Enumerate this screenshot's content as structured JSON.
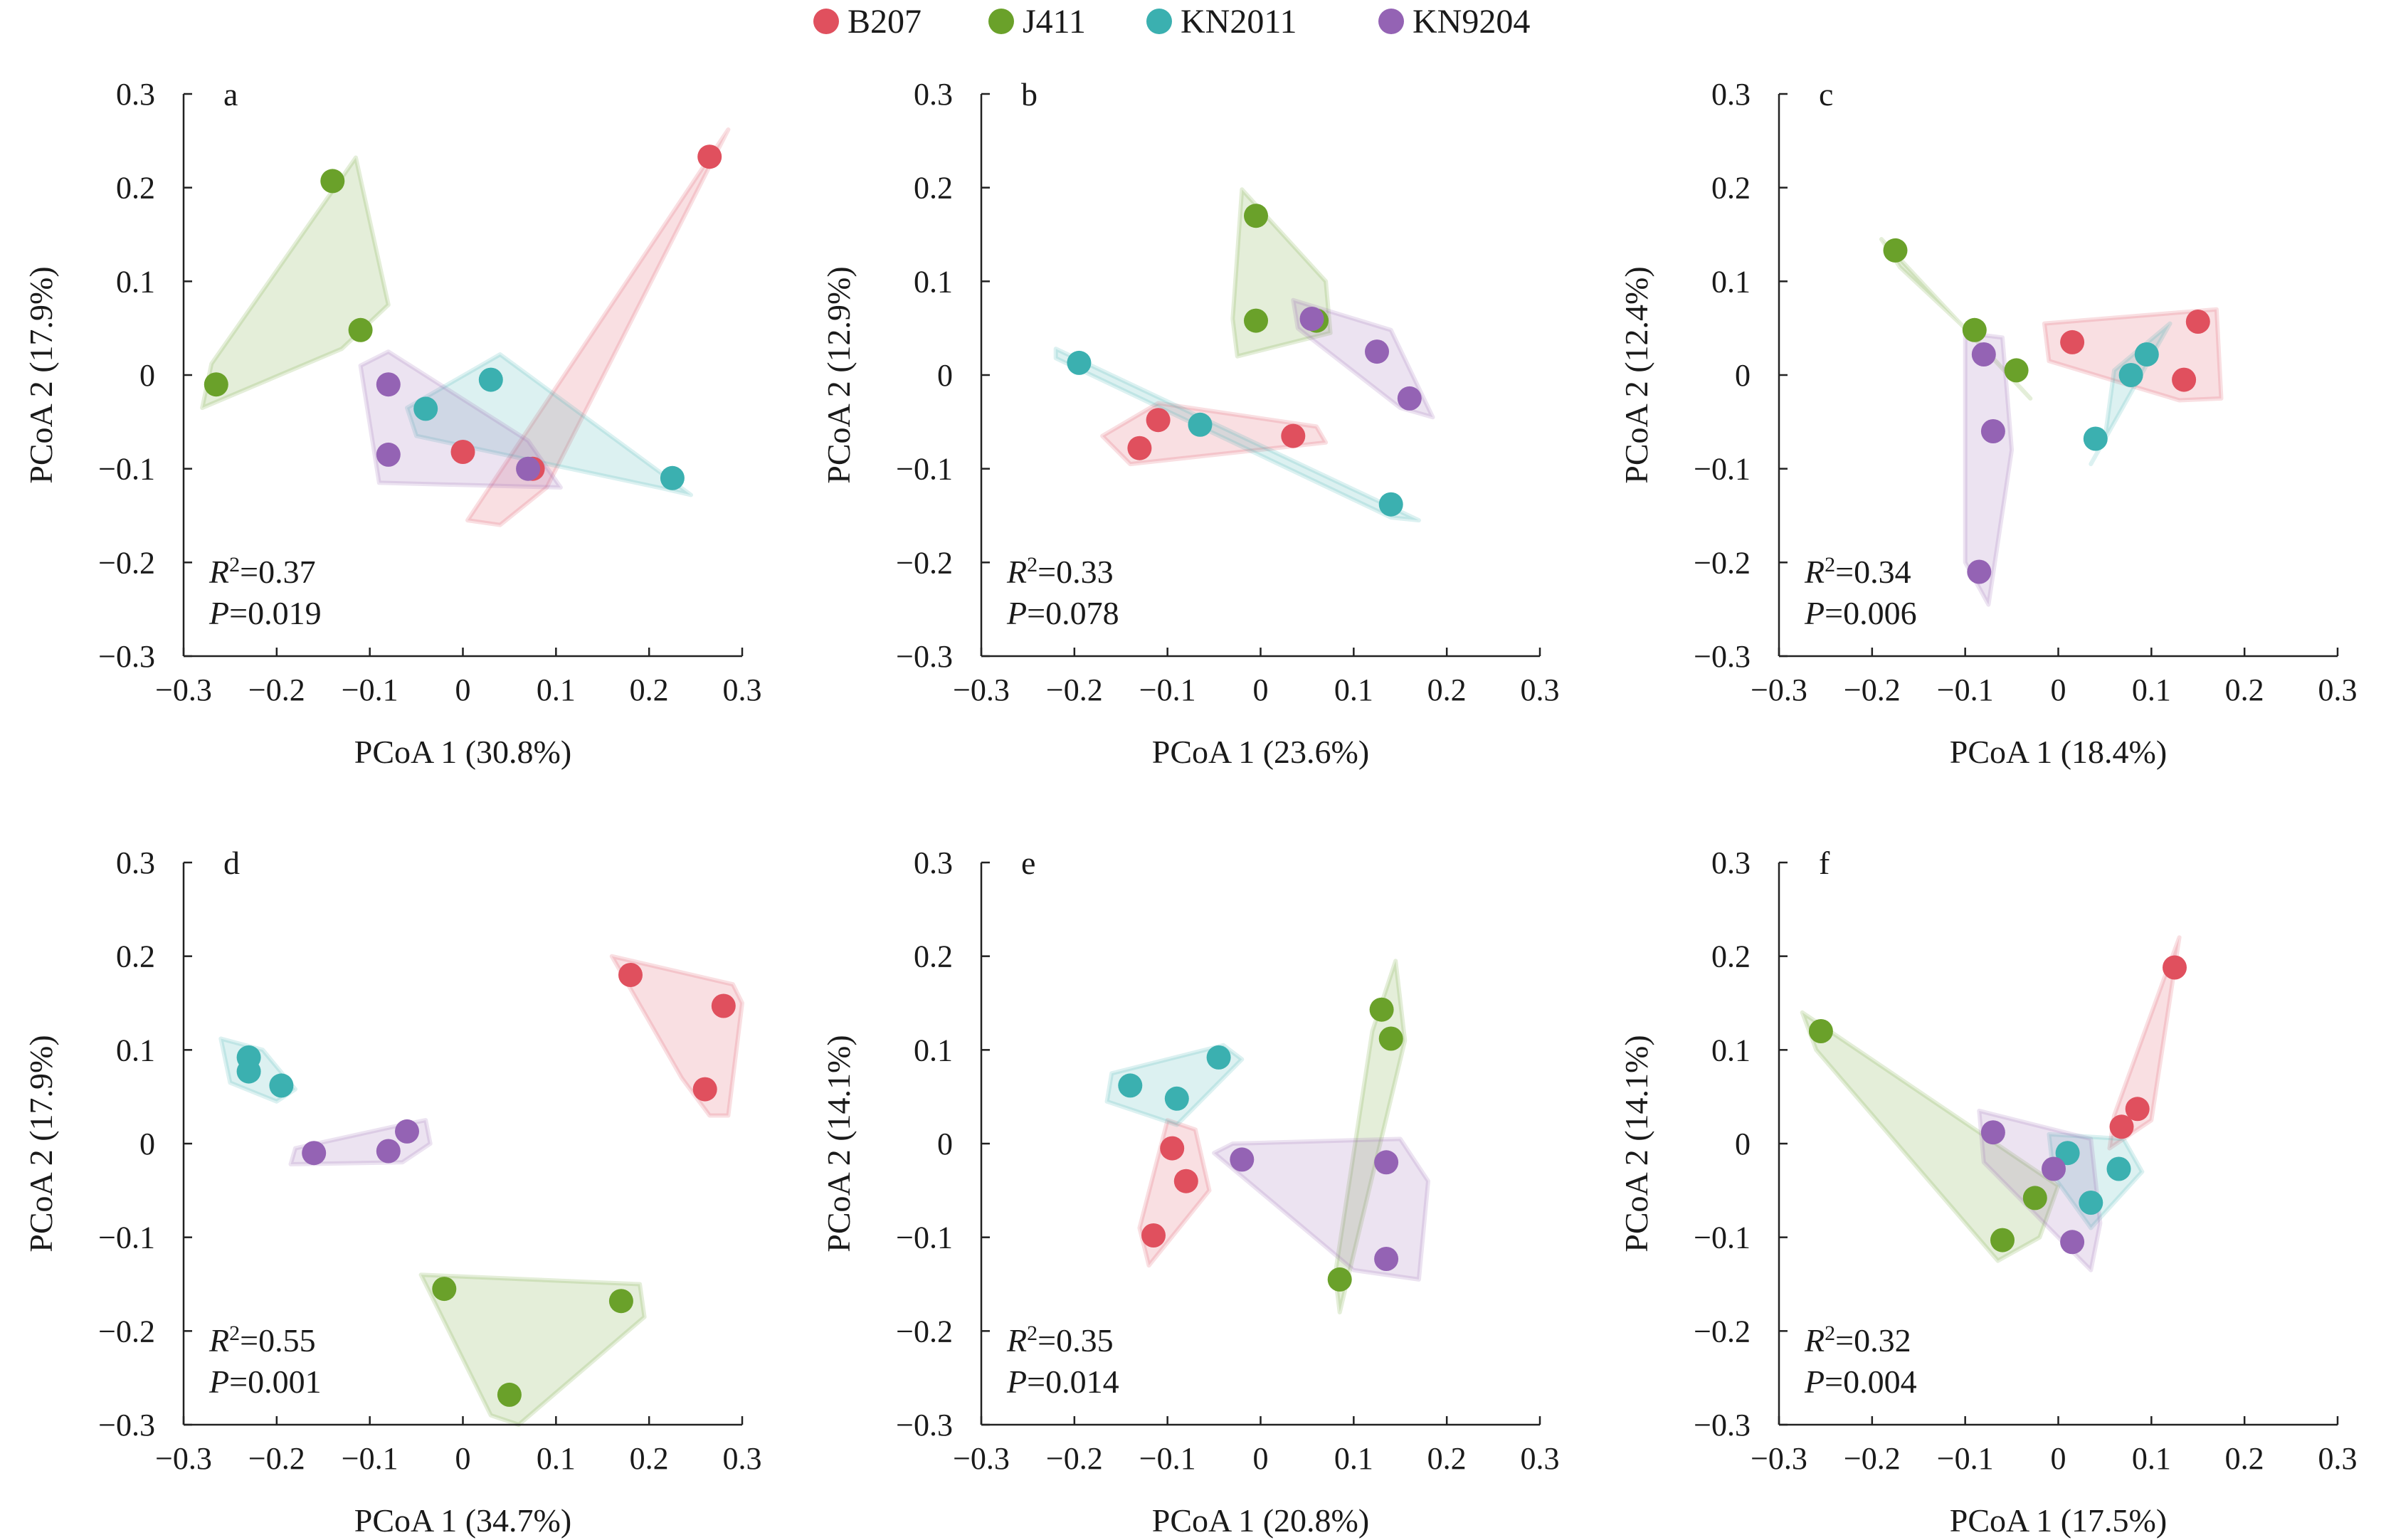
{
  "legend": {
    "items": [
      {
        "name": "B207",
        "color": "#e0505e"
      },
      {
        "name": "J411",
        "color": "#6aa12a"
      },
      {
        "name": "KN2011",
        "color": "#3bb0b0"
      },
      {
        "name": "KN9204",
        "color": "#9463b4"
      }
    ]
  },
  "chart_data": [
    {
      "type": "scatter",
      "panel": "a",
      "xlabel": "PCoA 1 (30.8%)",
      "ylabel": "PCoA 2 (17.9%)",
      "xlim": [
        -0.3,
        0.3
      ],
      "ylim": [
        -0.3,
        0.3
      ],
      "xticks": [
        "−0.3",
        "−0.2",
        "−0.1",
        "0",
        "0.1",
        "0.2",
        "0.3"
      ],
      "yticks": [
        "0.3",
        "0.2",
        "0.1",
        "0",
        "−0.1",
        "−0.2",
        "−0.3"
      ],
      "r2": "0.37",
      "p": "0.019",
      "series": [
        {
          "name": "B207",
          "points": [
            [
              0.265,
              0.233
            ],
            [
              0.0,
              -0.082
            ],
            [
              0.075,
              -0.1
            ]
          ]
        },
        {
          "name": "J411",
          "points": [
            [
              -0.14,
              0.207
            ],
            [
              -0.11,
              0.048
            ],
            [
              -0.265,
              -0.01
            ]
          ]
        },
        {
          "name": "KN2011",
          "points": [
            [
              0.03,
              -0.005
            ],
            [
              -0.04,
              -0.036
            ],
            [
              0.225,
              -0.11
            ]
          ]
        },
        {
          "name": "KN9204",
          "points": [
            [
              -0.08,
              -0.01
            ],
            [
              -0.08,
              -0.085
            ],
            [
              0.07,
              -0.1
            ]
          ]
        }
      ],
      "hulls": {
        "B207": [
          [
            0.285,
            0.262
          ],
          [
            0.005,
            -0.155
          ],
          [
            0.04,
            -0.16
          ],
          [
            0.09,
            -0.12
          ]
        ],
        "J411": [
          [
            -0.115,
            0.232
          ],
          [
            -0.08,
            0.075
          ],
          [
            -0.13,
            0.028
          ],
          [
            -0.28,
            -0.035
          ],
          [
            -0.27,
            0.012
          ]
        ],
        "KN2011": [
          [
            0.04,
            0.022
          ],
          [
            0.245,
            -0.128
          ],
          [
            0.21,
            -0.12
          ],
          [
            -0.05,
            -0.065
          ],
          [
            -0.06,
            -0.035
          ]
        ],
        "KN9204": [
          [
            -0.11,
            0.01
          ],
          [
            -0.08,
            0.025
          ],
          [
            0.07,
            -0.07
          ],
          [
            0.105,
            -0.12
          ],
          [
            -0.09,
            -0.115
          ]
        ]
      }
    },
    {
      "type": "scatter",
      "panel": "b",
      "xlabel": "PCoA 1 (23.6%)",
      "ylabel": "PCoA 2 (12.9%)",
      "xlim": [
        -0.3,
        0.3
      ],
      "ylim": [
        -0.3,
        0.3
      ],
      "xticks": [
        "−0.3",
        "−0.2",
        "−0.1",
        "0",
        "0.1",
        "0.2",
        "0.3"
      ],
      "yticks": [
        "0.3",
        "0.2",
        "0.1",
        "0",
        "−0.1",
        "−0.2",
        "−0.3"
      ],
      "r2": "0.33",
      "p": "0.078",
      "series": [
        {
          "name": "B207",
          "points": [
            [
              -0.11,
              -0.048
            ],
            [
              -0.13,
              -0.078
            ],
            [
              0.035,
              -0.065
            ]
          ]
        },
        {
          "name": "J411",
          "points": [
            [
              -0.005,
              0.17
            ],
            [
              -0.005,
              0.058
            ],
            [
              0.06,
              0.058
            ]
          ]
        },
        {
          "name": "KN2011",
          "points": [
            [
              -0.195,
              0.013
            ],
            [
              -0.065,
              -0.053
            ],
            [
              0.14,
              -0.138
            ]
          ]
        },
        {
          "name": "KN9204",
          "points": [
            [
              0.055,
              0.06
            ],
            [
              0.125,
              0.025
            ],
            [
              0.16,
              -0.025
            ]
          ]
        }
      ],
      "hulls": {
        "B207": [
          [
            -0.11,
            -0.03
          ],
          [
            0.06,
            -0.055
          ],
          [
            0.07,
            -0.072
          ],
          [
            -0.14,
            -0.095
          ],
          [
            -0.17,
            -0.065
          ]
        ],
        "J411": [
          [
            -0.02,
            0.198
          ],
          [
            0.07,
            0.1
          ],
          [
            0.075,
            0.045
          ],
          [
            -0.025,
            0.02
          ],
          [
            -0.03,
            0.06
          ]
        ],
        "KN2011": [
          [
            -0.22,
            0.028
          ],
          [
            0.17,
            -0.155
          ],
          [
            0.14,
            -0.152
          ],
          [
            -0.22,
            0.018
          ]
        ],
        "KN9204": [
          [
            0.035,
            0.08
          ],
          [
            0.14,
            0.048
          ],
          [
            0.185,
            -0.045
          ],
          [
            0.15,
            -0.035
          ],
          [
            0.04,
            0.05
          ]
        ]
      }
    },
    {
      "type": "scatter",
      "panel": "c",
      "xlabel": "PCoA 1 (18.4%)",
      "ylabel": "PCoA 2 (12.4%)",
      "xlim": [
        -0.3,
        0.3
      ],
      "ylim": [
        -0.3,
        0.3
      ],
      "xticks": [
        "−0.3",
        "−0.2",
        "−0.1",
        "0",
        "0.1",
        "0.2",
        "0.3"
      ],
      "yticks": [
        "0.3",
        "0.2",
        "0.1",
        "0",
        "−0.1",
        "−0.2",
        "−0.3"
      ],
      "r2": "0.34",
      "p": "0.006",
      "series": [
        {
          "name": "B207",
          "points": [
            [
              0.15,
              0.057
            ],
            [
              0.015,
              0.035
            ],
            [
              0.135,
              -0.005
            ]
          ]
        },
        {
          "name": "J411",
          "points": [
            [
              -0.175,
              0.133
            ],
            [
              -0.09,
              0.048
            ],
            [
              -0.045,
              0.005
            ]
          ]
        },
        {
          "name": "KN2011",
          "points": [
            [
              0.095,
              0.022
            ],
            [
              0.078,
              0.0
            ],
            [
              0.04,
              -0.068
            ]
          ]
        },
        {
          "name": "KN9204",
          "points": [
            [
              -0.08,
              0.022
            ],
            [
              -0.07,
              -0.06
            ],
            [
              -0.085,
              -0.21
            ]
          ]
        }
      ],
      "hulls": {
        "B207": [
          [
            -0.015,
            0.055
          ],
          [
            0.17,
            0.07
          ],
          [
            0.175,
            -0.025
          ],
          [
            0.13,
            -0.027
          ],
          [
            -0.01,
            0.015
          ]
        ],
        "J411": [
          [
            -0.19,
            0.145
          ],
          [
            -0.03,
            -0.025
          ],
          [
            -0.1,
            0.05
          ],
          [
            -0.17,
            0.115
          ]
        ],
        "KN2011": [
          [
            0.12,
            0.055
          ],
          [
            0.035,
            -0.095
          ],
          [
            0.05,
            -0.068
          ],
          [
            0.06,
            0.005
          ]
        ],
        "KN9204": [
          [
            -0.1,
            0.045
          ],
          [
            -0.06,
            0.04
          ],
          [
            -0.05,
            -0.08
          ],
          [
            -0.075,
            -0.245
          ],
          [
            -0.1,
            -0.2
          ]
        ]
      }
    },
    {
      "type": "scatter",
      "panel": "d",
      "xlabel": "PCoA 1 (34.7%)",
      "ylabel": "PCoA 2 (17.9%)",
      "xlim": [
        -0.3,
        0.3
      ],
      "ylim": [
        -0.3,
        0.3
      ],
      "xticks": [
        "−0.3",
        "−0.2",
        "−0.1",
        "0",
        "0.1",
        "0.2",
        "0.3"
      ],
      "yticks": [
        "0.3",
        "0.2",
        "0.1",
        "0",
        "−0.1",
        "−0.2",
        "−0.3"
      ],
      "r2": "0.55",
      "p": "0.001",
      "series": [
        {
          "name": "B207",
          "points": [
            [
              0.18,
              0.18
            ],
            [
              0.28,
              0.147
            ],
            [
              0.26,
              0.058
            ]
          ]
        },
        {
          "name": "J411",
          "points": [
            [
              -0.02,
              -0.155
            ],
            [
              0.17,
              -0.168
            ],
            [
              0.05,
              -0.268
            ]
          ]
        },
        {
          "name": "KN2011",
          "points": [
            [
              -0.23,
              0.092
            ],
            [
              -0.23,
              0.077
            ],
            [
              -0.195,
              0.062
            ]
          ]
        },
        {
          "name": "KN9204",
          "points": [
            [
              -0.06,
              0.013
            ],
            [
              -0.08,
              -0.008
            ],
            [
              -0.16,
              -0.01
            ]
          ]
        }
      ],
      "hulls": {
        "B207": [
          [
            0.16,
            0.2
          ],
          [
            0.29,
            0.17
          ],
          [
            0.3,
            0.15
          ],
          [
            0.285,
            0.03
          ],
          [
            0.265,
            0.03
          ],
          [
            0.235,
            0.07
          ]
        ],
        "J411": [
          [
            -0.045,
            -0.14
          ],
          [
            0.19,
            -0.15
          ],
          [
            0.195,
            -0.185
          ],
          [
            0.06,
            -0.3
          ],
          [
            0.03,
            -0.29
          ]
        ],
        "KN2011": [
          [
            -0.26,
            0.112
          ],
          [
            -0.215,
            0.1
          ],
          [
            -0.18,
            0.058
          ],
          [
            -0.2,
            0.045
          ],
          [
            -0.25,
            0.065
          ]
        ],
        "KN9204": [
          [
            -0.18,
            -0.005
          ],
          [
            -0.075,
            0.018
          ],
          [
            -0.04,
            0.025
          ],
          [
            -0.035,
            0.0
          ],
          [
            -0.065,
            -0.02
          ],
          [
            -0.185,
            -0.022
          ]
        ]
      }
    },
    {
      "type": "scatter",
      "panel": "e",
      "xlabel": "PCoA 1 (20.8%)",
      "ylabel": "PCoA 2 (14.1%)",
      "xlim": [
        -0.3,
        0.3
      ],
      "ylim": [
        -0.3,
        0.3
      ],
      "xticks": [
        "−0.3",
        "−0.2",
        "−0.1",
        "0",
        "0.1",
        "0.2",
        "0.3"
      ],
      "yticks": [
        "0.3",
        "0.2",
        "0.1",
        "0",
        "−0.1",
        "−0.2",
        "−0.3"
      ],
      "r2": "0.35",
      "p": "0.014",
      "series": [
        {
          "name": "B207",
          "points": [
            [
              -0.095,
              -0.005
            ],
            [
              -0.08,
              -0.04
            ],
            [
              -0.115,
              -0.098
            ]
          ]
        },
        {
          "name": "J411",
          "points": [
            [
              0.13,
              0.143
            ],
            [
              0.14,
              0.112
            ],
            [
              0.085,
              -0.145
            ]
          ]
        },
        {
          "name": "KN2011",
          "points": [
            [
              -0.045,
              0.092
            ],
            [
              -0.14,
              0.062
            ],
            [
              -0.09,
              0.048
            ]
          ]
        },
        {
          "name": "KN9204",
          "points": [
            [
              -0.02,
              -0.017
            ],
            [
              0.135,
              -0.02
            ],
            [
              0.135,
              -0.123
            ]
          ]
        }
      ],
      "hulls": {
        "B207": [
          [
            -0.1,
            0.025
          ],
          [
            -0.07,
            0.015
          ],
          [
            -0.055,
            -0.05
          ],
          [
            -0.12,
            -0.13
          ],
          [
            -0.13,
            -0.09
          ]
        ],
        "J411": [
          [
            0.145,
            0.195
          ],
          [
            0.155,
            0.11
          ],
          [
            0.085,
            -0.18
          ],
          [
            0.08,
            -0.14
          ],
          [
            0.12,
            0.12
          ]
        ],
        "KN2011": [
          [
            -0.16,
            0.075
          ],
          [
            -0.04,
            0.105
          ],
          [
            -0.02,
            0.09
          ],
          [
            -0.09,
            0.02
          ],
          [
            -0.165,
            0.045
          ]
        ],
        "KN9204": [
          [
            -0.05,
            -0.01
          ],
          [
            -0.03,
            0.0
          ],
          [
            0.15,
            0.005
          ],
          [
            0.18,
            -0.04
          ],
          [
            0.17,
            -0.145
          ],
          [
            0.1,
            -0.135
          ]
        ]
      }
    },
    {
      "type": "scatter",
      "panel": "f",
      "xlabel": "PCoA 1 (17.5%)",
      "ylabel": "PCoA 2 (14.1%)",
      "xlim": [
        -0.3,
        0.3
      ],
      "ylim": [
        -0.3,
        0.3
      ],
      "xticks": [
        "−0.3",
        "−0.2",
        "−0.1",
        "0",
        "0.1",
        "0.2",
        "0.3"
      ],
      "yticks": [
        "0.3",
        "0.2",
        "0.1",
        "0",
        "−0.1",
        "−0.2",
        "−0.3"
      ],
      "r2": "0.32",
      "p": "0.004",
      "series": [
        {
          "name": "B207",
          "points": [
            [
              0.125,
              0.188
            ],
            [
              0.085,
              0.037
            ],
            [
              0.068,
              0.018
            ]
          ]
        },
        {
          "name": "J411",
          "points": [
            [
              -0.255,
              0.12
            ],
            [
              -0.025,
              -0.058
            ],
            [
              -0.06,
              -0.103
            ]
          ]
        },
        {
          "name": "KN2011",
          "points": [
            [
              0.01,
              -0.01
            ],
            [
              0.065,
              -0.027
            ],
            [
              0.035,
              -0.063
            ]
          ]
        },
        {
          "name": "KN9204",
          "points": [
            [
              -0.07,
              0.012
            ],
            [
              -0.005,
              -0.027
            ],
            [
              0.015,
              -0.105
            ]
          ]
        }
      ],
      "hulls": {
        "B207": [
          [
            0.13,
            0.22
          ],
          [
            0.1,
            0.025
          ],
          [
            0.055,
            -0.005
          ],
          [
            0.06,
            0.03
          ],
          [
            0.115,
            0.18
          ]
        ],
        "J411": [
          [
            -0.275,
            0.14
          ],
          [
            0.0,
            -0.045
          ],
          [
            -0.02,
            -0.1
          ],
          [
            -0.065,
            -0.125
          ],
          [
            -0.26,
            0.1
          ]
        ],
        "KN2011": [
          [
            -0.01,
            0.01
          ],
          [
            0.07,
            0.005
          ],
          [
            0.09,
            -0.03
          ],
          [
            0.035,
            -0.09
          ],
          [
            -0.005,
            -0.035
          ]
        ],
        "KN9204": [
          [
            -0.085,
            0.035
          ],
          [
            0.035,
            0.005
          ],
          [
            0.045,
            -0.085
          ],
          [
            0.035,
            -0.135
          ],
          [
            -0.08,
            -0.02
          ]
        ]
      }
    }
  ]
}
